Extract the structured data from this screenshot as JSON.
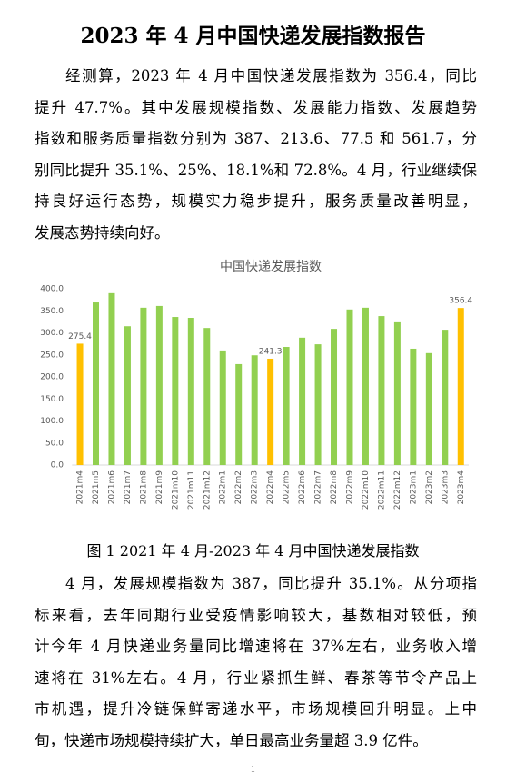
{
  "title": "2023 年 4 月中国快递发展指数报告",
  "paragraphs": [
    {
      "lines": [
        "经测算，2023 年 4 月中国快递发展指数为 356.4，同比",
        "提升 47.7%。其中发展规模指数、发展能力指数、发展趋势",
        "指数和服务质量指数分别为 387、213.6、77.5 和 561.7，分",
        "别同比提升 35.1%、25%、18.1%和 72.8%。4 月，行业继续保",
        "持良好运行态势，规模实力稳步提升，服务质量改善明显，",
        "发展态势持续向好。"
      ]
    },
    {
      "lines": [
        "4 月，发展规模指数为 387，同比提升 35.1%。从分项指",
        "标来看，去年同期行业受疫情影响较大，基数相对较低，预",
        "计今年 4 月快递业务量同比增速将在 37%左右，业务收入增",
        "速将在 31%左右。4 月，行业紧抓生鲜、春茶等节令产品上",
        "市机遇，提升冷链保鲜寄递水平，市场规模回升明显。上中",
        "旬，快递市场规模持续扩大，单日最高业务量超 3.9 亿件。"
      ]
    }
  ],
  "caption": "图 1 2021 年 4 月-2023 年 4 月中国快递发展指数",
  "page_number": "1",
  "chart_data": {
    "type": "bar",
    "title": "中国快递发展指数",
    "categories": [
      "2021m4",
      "2021m5",
      "2021m6",
      "2021m7",
      "2021m8",
      "2021m9",
      "2021m10",
      "2021m11",
      "2021m12",
      "2022m1",
      "2022m2",
      "2022m3",
      "2022m4",
      "2022m5",
      "2022m6",
      "2022m7",
      "2022m8",
      "2022m9",
      "2022m10",
      "2022m11",
      "2022m12",
      "2023m1",
      "2023m2",
      "2023m3",
      "2023m4"
    ],
    "values": [
      275.4,
      369,
      390,
      315,
      357,
      361,
      336,
      334,
      311,
      260,
      229,
      249,
      241.3,
      268,
      289,
      274,
      309,
      353,
      357,
      338,
      326,
      264,
      254,
      307,
      356.4
    ],
    "value_labels": [
      "275.4",
      null,
      null,
      null,
      null,
      null,
      null,
      null,
      null,
      null,
      null,
      null,
      "241.3",
      null,
      null,
      null,
      null,
      null,
      null,
      null,
      null,
      null,
      null,
      null,
      "356.4"
    ],
    "colors": [
      "#ffc000",
      "#92d050",
      "#92d050",
      "#92d050",
      "#92d050",
      "#92d050",
      "#92d050",
      "#92d050",
      "#92d050",
      "#92d050",
      "#92d050",
      "#92d050",
      "#ffc000",
      "#92d050",
      "#92d050",
      "#92d050",
      "#92d050",
      "#92d050",
      "#92d050",
      "#92d050",
      "#92d050",
      "#92d050",
      "#92d050",
      "#92d050",
      "#ffc000"
    ],
    "ylim": [
      0,
      400
    ],
    "yticks": [
      {
        "value": 0,
        "label": "0.0"
      },
      {
        "value": 50,
        "label": "50.0"
      },
      {
        "value": 100,
        "label": "100.0"
      },
      {
        "value": 150,
        "label": "150.0"
      },
      {
        "value": 200,
        "label": "200.0"
      },
      {
        "value": 250,
        "label": "250.0"
      },
      {
        "value": 300,
        "label": "300.0"
      },
      {
        "value": 350,
        "label": "350.0"
      },
      {
        "value": 400,
        "label": "400.0"
      }
    ],
    "grid": false
  }
}
